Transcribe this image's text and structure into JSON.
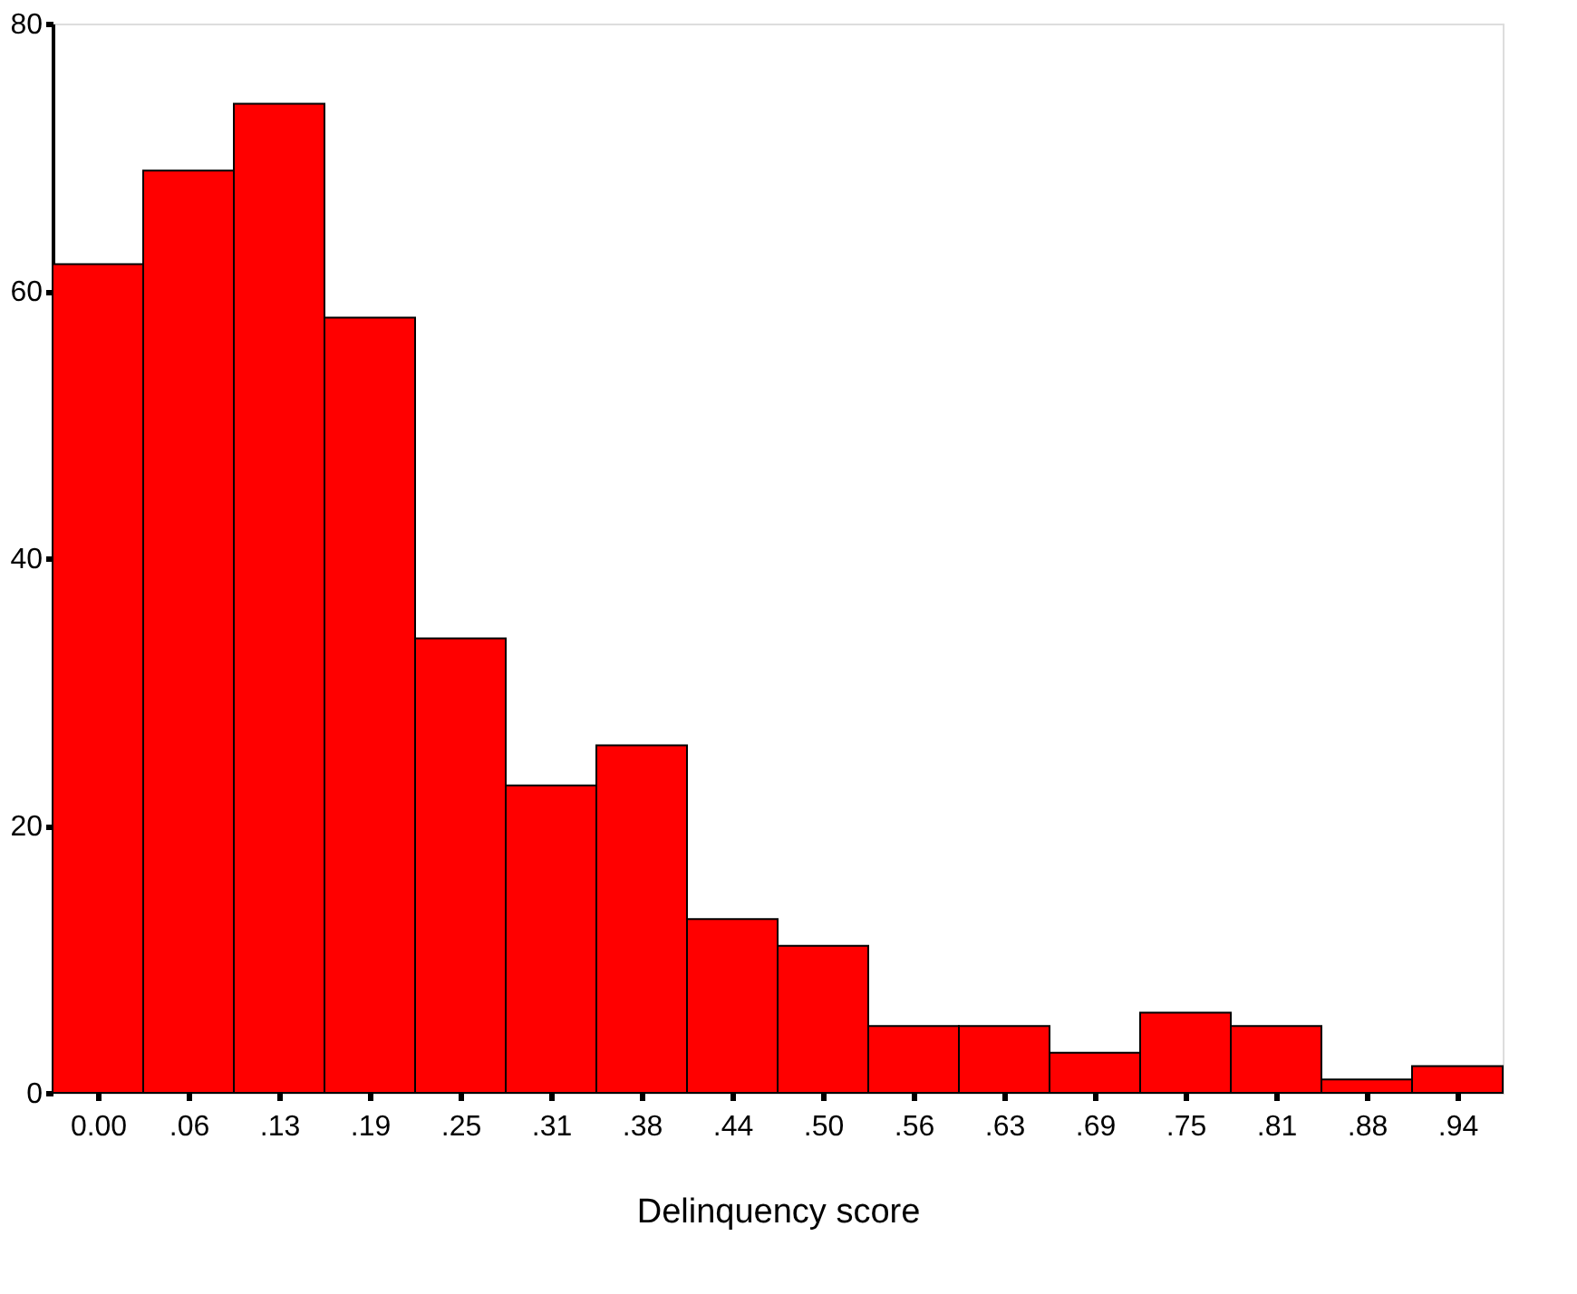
{
  "chart_data": {
    "type": "histogram",
    "xlabel": "Delinquency score",
    "bins": [
      -0.03125,
      0.03125,
      0.09375,
      0.15625,
      0.21875,
      0.28125,
      0.34375,
      0.40625,
      0.46875,
      0.53125,
      0.59375,
      0.65625,
      0.71875,
      0.78125,
      0.84375,
      0.90625,
      0.96875
    ],
    "values": [
      62,
      69,
      74,
      58,
      34,
      23,
      26,
      13,
      11,
      5,
      5,
      3,
      6,
      5,
      1,
      2
    ],
    "color": "#ff0000",
    "xlim": [
      -0.03125,
      0.96875
    ],
    "xticks": [
      {
        "value": 0,
        "label": "0.00"
      },
      {
        "value": 0.0625,
        "label": ".06"
      },
      {
        "value": 0.125,
        "label": ".13"
      },
      {
        "value": 0.1875,
        "label": ".19"
      },
      {
        "value": 0.25,
        "label": ".25"
      },
      {
        "value": 0.3125,
        "label": ".31"
      },
      {
        "value": 0.375,
        "label": ".38"
      },
      {
        "value": 0.4375,
        "label": ".44"
      },
      {
        "value": 0.5,
        "label": ".50"
      },
      {
        "value": 0.5625,
        "label": ".56"
      },
      {
        "value": 0.625,
        "label": ".63"
      },
      {
        "value": 0.6875,
        "label": ".69"
      },
      {
        "value": 0.75,
        "label": ".75"
      },
      {
        "value": 0.8125,
        "label": ".81"
      },
      {
        "value": 0.875,
        "label": ".88"
      },
      {
        "value": 0.9375,
        "label": ".94"
      }
    ],
    "ylim": [
      0,
      80
    ],
    "yticks": [
      0,
      20,
      40,
      60,
      80
    ],
    "grid": false
  }
}
